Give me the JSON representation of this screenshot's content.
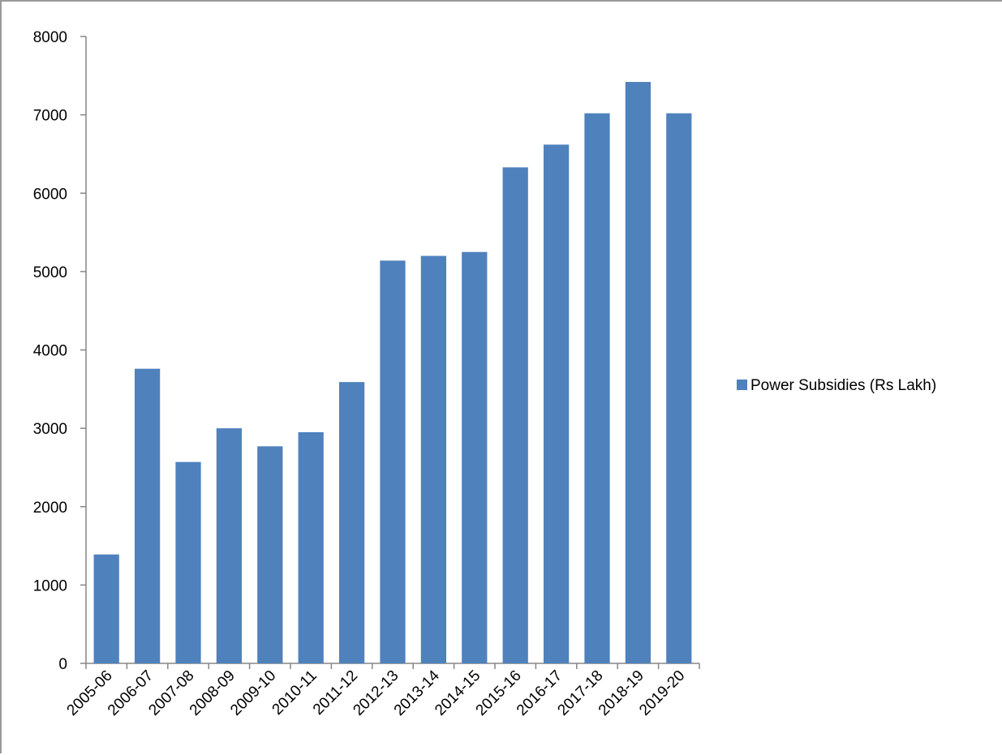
{
  "chart_data": {
    "type": "bar",
    "title": "",
    "xlabel": "",
    "ylabel": "",
    "categories": [
      "2005-06",
      "2006-07",
      "2007-08",
      "2008-09",
      "2009-10",
      "2010-11",
      "2011-12",
      "2012-13",
      "2013-14",
      "2014-15",
      "2015-16",
      "2016-17",
      "2017-18",
      "2018-19",
      "2019-20"
    ],
    "series": [
      {
        "name": "Power Subsidies (Rs Lakh)",
        "color": "#4F81BD",
        "values": [
          1390,
          3760,
          2570,
          3000,
          2770,
          2950,
          3590,
          5140,
          5200,
          5250,
          6330,
          6620,
          7020,
          7420,
          7020
        ]
      }
    ],
    "ylim": [
      0,
      8000
    ],
    "yticks": [
      0,
      1000,
      2000,
      3000,
      4000,
      5000,
      6000,
      7000,
      8000
    ],
    "grid": false,
    "legend_position": "right"
  }
}
